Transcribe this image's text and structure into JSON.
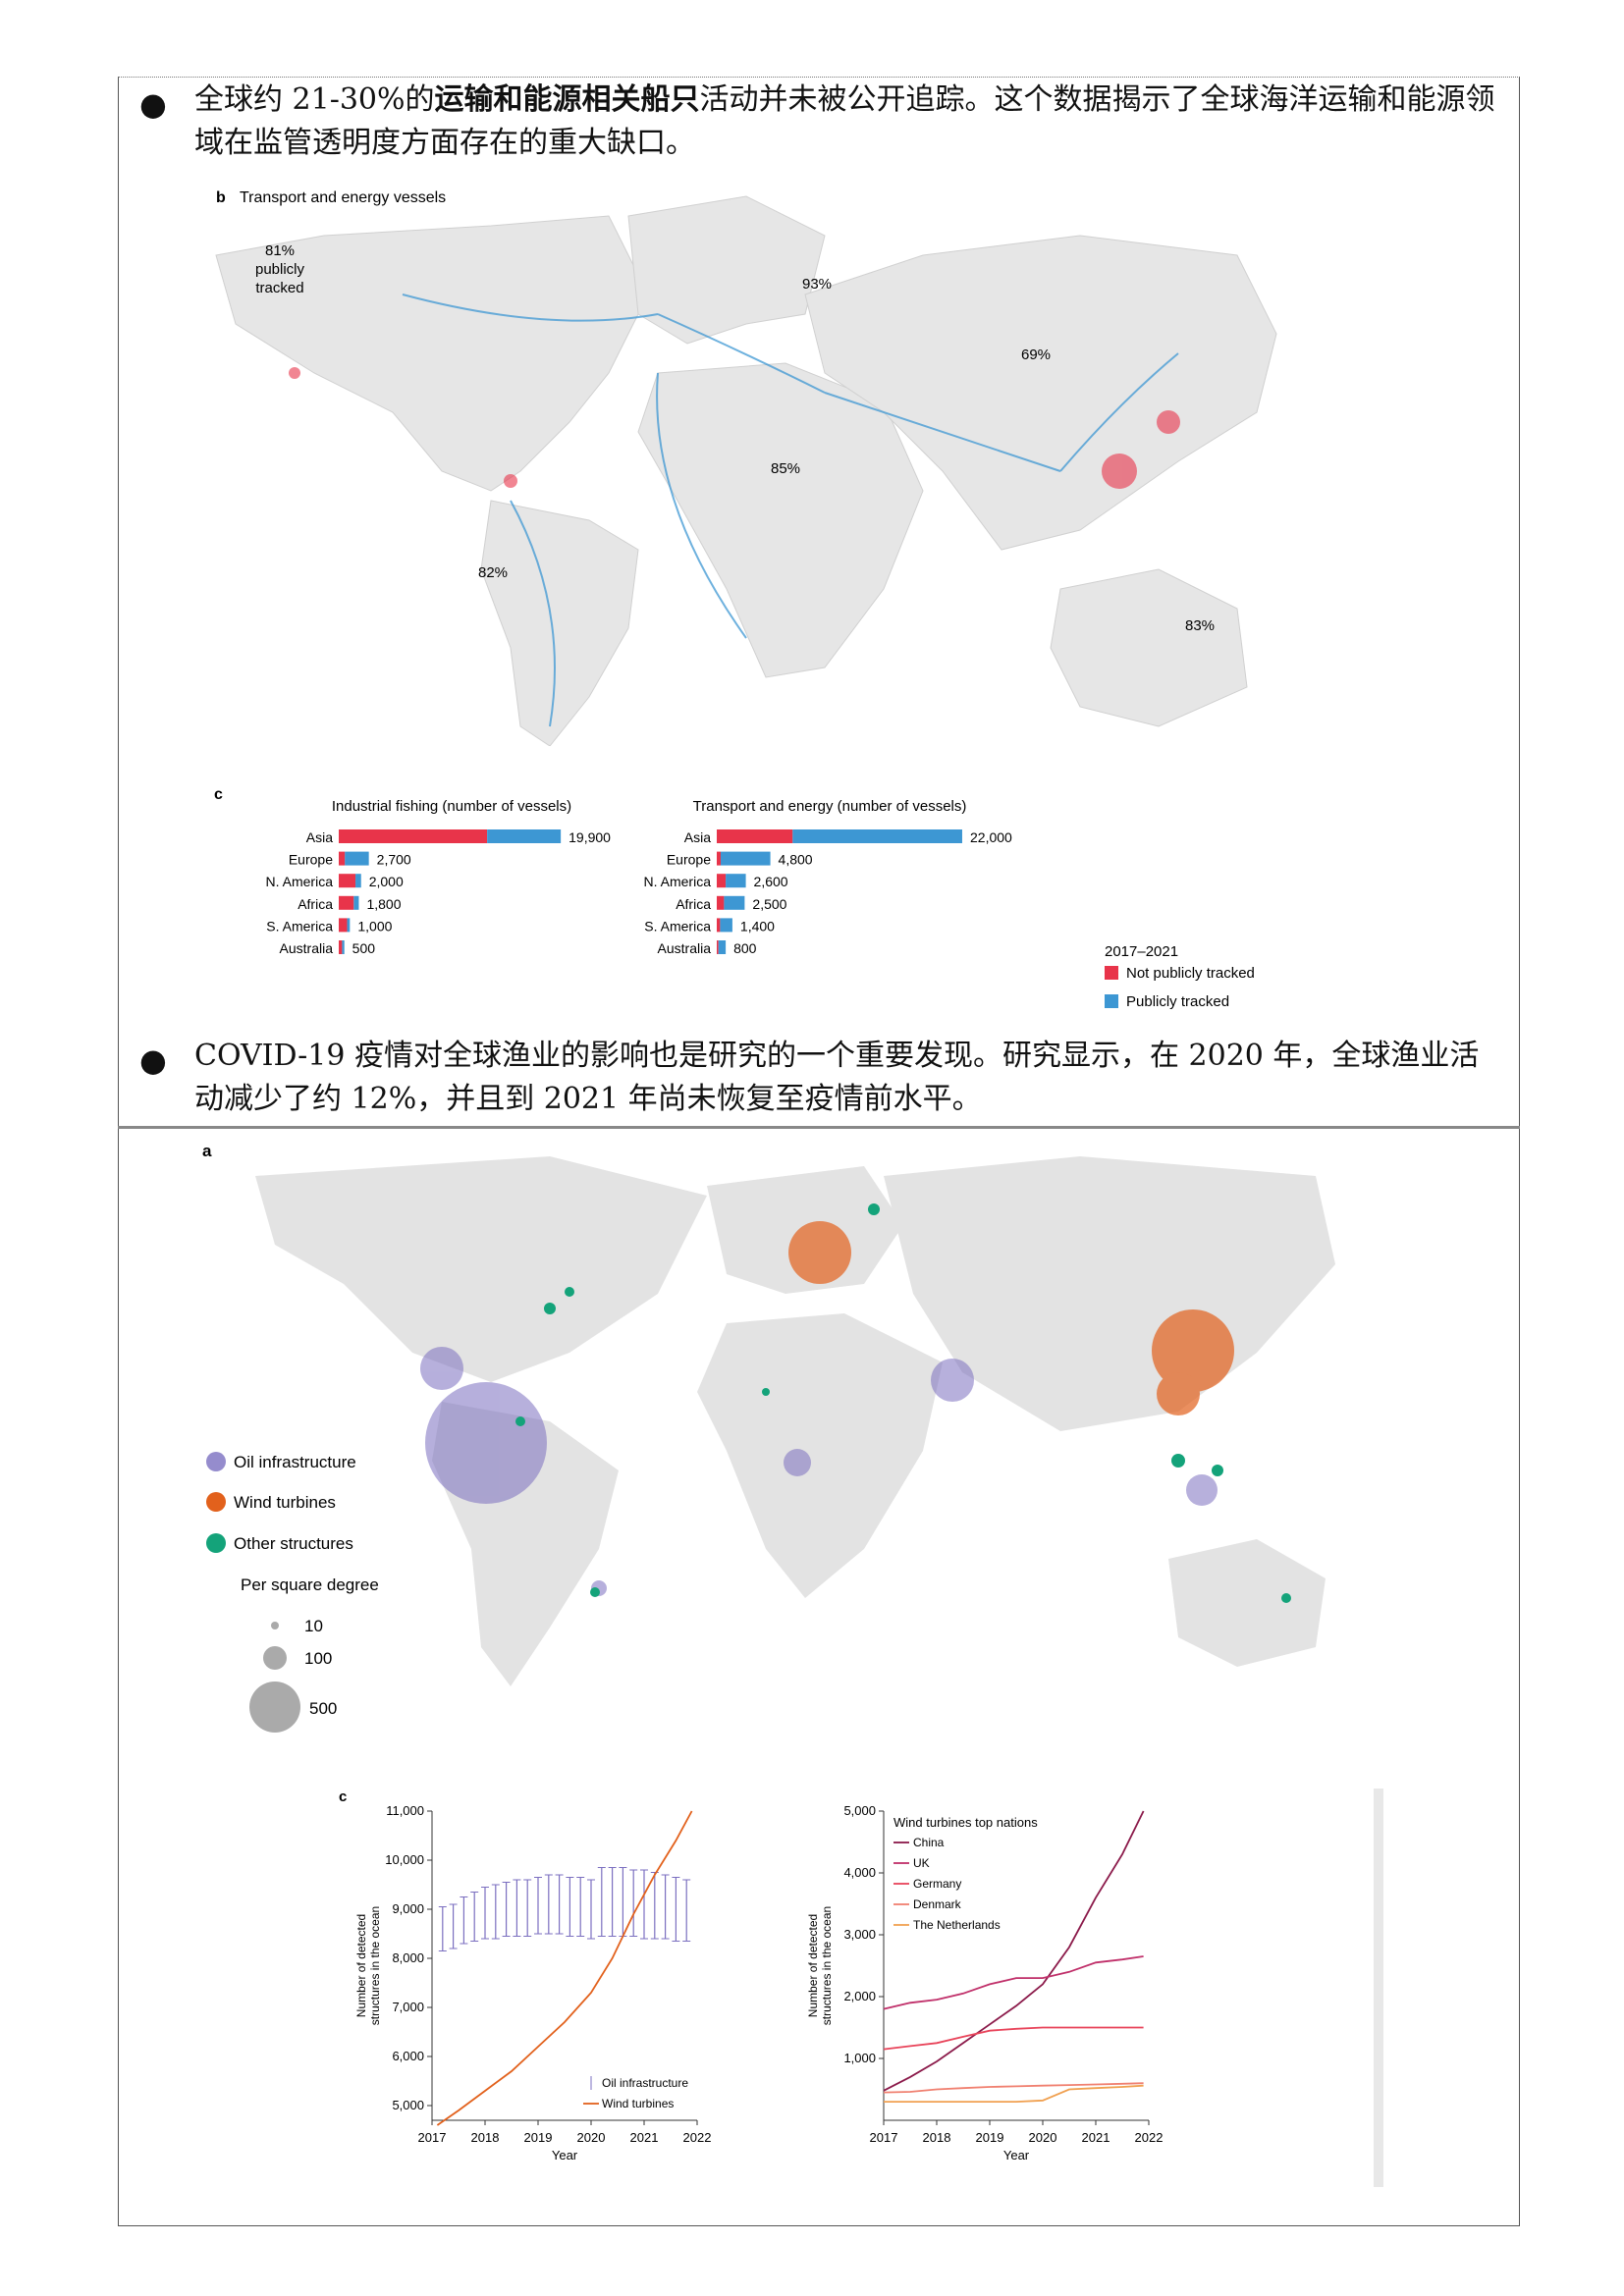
{
  "para1": {
    "pre": "全球约 21-30%的",
    "bold": "运输和能源相关船只",
    "post": "活动并未被公开追踪。这个数据揭示了全球海洋运输和能源领域在监管透明度方面存在的重大缺口。"
  },
  "para2": {
    "text": "COVID-19 疫情对全球渔业的影响也是研究的一个重要发现。研究显示，在 2020 年，全球渔业活动减少了约 12%，并且到 2021 年尚未恢复至疫情前水平。"
  },
  "bullet_glyph": "●",
  "figure_b": {
    "label": "b",
    "title": "Transport and energy vessels",
    "pct_na": [
      "81%",
      "publicly",
      "tracked"
    ],
    "pct_eu": "93%",
    "pct_asia": "69%",
    "pct_africa": "85%",
    "pct_sa": "82%",
    "pct_au": "83%"
  },
  "figure_c_top": {
    "label": "c",
    "legend_title": "2017–2021",
    "legend_items": [
      "Not publicly tracked",
      "Publicly tracked"
    ],
    "colors": {
      "not_tracked": "#e8344a",
      "tracked": "#3d97d3"
    }
  },
  "figure_a": {
    "label": "a",
    "legend": [
      "Oil infrastructure",
      "Wind turbines",
      "Other structures"
    ],
    "size_title": "Per square degree",
    "sizes": [
      "10",
      "100",
      "500"
    ],
    "colors": {
      "oil": "#7b6fc0",
      "wind": "#e2611c",
      "other": "#14a37a"
    }
  },
  "figure_c_bottom": {
    "label": "c"
  },
  "chart_data": [
    {
      "type": "bar",
      "title": "Industrial fishing (number of vessels)",
      "categories": [
        "Asia",
        "Europe",
        "N. America",
        "Africa",
        "S. America",
        "Australia"
      ],
      "series": [
        {
          "name": "Not publicly tracked",
          "values": [
            13300,
            550,
            1500,
            1350,
            750,
            300
          ]
        },
        {
          "name": "Publicly tracked",
          "values": [
            6600,
            2150,
            500,
            450,
            250,
            200
          ]
        }
      ],
      "totals": [
        "19,900",
        "2,700",
        "2,000",
        "1,800",
        "1,000",
        "500"
      ],
      "max": 22000
    },
    {
      "type": "bar",
      "title": "Transport and energy (number of vessels)",
      "categories": [
        "Asia",
        "Europe",
        "N. America",
        "Africa",
        "S. America",
        "Australia"
      ],
      "series": [
        {
          "name": "Not publicly tracked",
          "values": [
            6800,
            350,
            800,
            650,
            300,
            150
          ]
        },
        {
          "name": "Publicly tracked",
          "values": [
            15200,
            4450,
            1800,
            1850,
            1100,
            650
          ]
        }
      ],
      "totals": [
        "22,000",
        "4,800",
        "2,600",
        "2,500",
        "1,400",
        "800"
      ],
      "max": 22000
    },
    {
      "type": "line",
      "xlabel": "Year",
      "ylabel": "Number of detected structures in the ocean",
      "xlim": [
        2017,
        2022
      ],
      "ylim": [
        4700,
        11000
      ],
      "xticks": [
        "2017",
        "2018",
        "2019",
        "2020",
        "2021",
        "2022"
      ],
      "yticks": [
        "5,000",
        "6,000",
        "7,000",
        "8,000",
        "9,000",
        "10,000",
        "11,000"
      ],
      "legend": [
        "Oil infrastructure",
        "Wind turbines"
      ],
      "oil_errorbars": {
        "x": [
          2017.2,
          2017.4,
          2017.6,
          2017.8,
          2018.0,
          2018.2,
          2018.4,
          2018.6,
          2018.8,
          2019.0,
          2019.2,
          2019.4,
          2019.6,
          2019.8,
          2020.0,
          2020.2,
          2020.4,
          2020.6,
          2020.8,
          2021.0,
          2021.2,
          2021.4,
          2021.6,
          2021.8
        ],
        "low": [
          8150,
          8200,
          8300,
          8350,
          8400,
          8400,
          8450,
          8450,
          8450,
          8500,
          8500,
          8500,
          8450,
          8450,
          8400,
          8450,
          8450,
          8450,
          8450,
          8400,
          8400,
          8400,
          8350,
          8350
        ],
        "high": [
          9050,
          9100,
          9250,
          9350,
          9450,
          9500,
          9550,
          9600,
          9600,
          9650,
          9700,
          9700,
          9650,
          9650,
          9600,
          9850,
          9850,
          9850,
          9800,
          9800,
          9750,
          9700,
          9650,
          9600
        ]
      },
      "wind": {
        "x": [
          2017.1,
          2017.5,
          2018.0,
          2018.5,
          2019.0,
          2019.5,
          2020.0,
          2020.4,
          2020.8,
          2021.2,
          2021.6,
          2021.9
        ],
        "y": [
          4600,
          4900,
          5300,
          5700,
          6200,
          6700,
          7300,
          8000,
          8900,
          9700,
          10400,
          11000
        ]
      }
    },
    {
      "type": "line",
      "title": "Wind turbines top nations",
      "xlabel": "Year",
      "ylabel": "Number of detected structures in the ocean",
      "xlim": [
        2017,
        2022
      ],
      "ylim": [
        0,
        5000
      ],
      "xticks": [
        "2017",
        "2018",
        "2019",
        "2020",
        "2021",
        "2022"
      ],
      "yticks": [
        "1,000",
        "2,000",
        "3,000",
        "4,000",
        "5,000"
      ],
      "series": [
        {
          "name": "China",
          "color": "#8b1a4a",
          "x": [
            2017,
            2017.5,
            2018,
            2018.5,
            2019,
            2019.5,
            2020,
            2020.5,
            2021,
            2021.5,
            2021.9
          ],
          "y": [
            480,
            700,
            950,
            1250,
            1550,
            1850,
            2200,
            2800,
            3600,
            4300,
            5000
          ]
        },
        {
          "name": "UK",
          "color": "#c0306a",
          "x": [
            2017,
            2017.5,
            2018,
            2018.5,
            2019,
            2019.5,
            2020,
            2020.5,
            2021,
            2021.5,
            2021.9
          ],
          "y": [
            1800,
            1900,
            1950,
            2050,
            2200,
            2300,
            2300,
            2400,
            2550,
            2600,
            2650
          ]
        },
        {
          "name": "Germany",
          "color": "#e8445a",
          "x": [
            2017,
            2017.5,
            2018,
            2018.5,
            2019,
            2019.5,
            2020,
            2020.5,
            2021,
            2021.5,
            2021.9
          ],
          "y": [
            1150,
            1200,
            1250,
            1350,
            1450,
            1480,
            1500,
            1500,
            1500,
            1500,
            1500
          ]
        },
        {
          "name": "Denmark",
          "color": "#f08070",
          "x": [
            2017,
            2017.5,
            2018,
            2018.5,
            2019,
            2019.5,
            2020,
            2020.5,
            2021,
            2021.5,
            2021.9
          ],
          "y": [
            450,
            460,
            500,
            520,
            540,
            550,
            560,
            570,
            580,
            590,
            600
          ]
        },
        {
          "name": "The Netherlands",
          "color": "#f0a050",
          "x": [
            2017,
            2017.5,
            2018,
            2018.5,
            2019,
            2019.5,
            2020,
            2020.5,
            2021,
            2021.5,
            2021.9
          ],
          "y": [
            300,
            300,
            300,
            300,
            300,
            300,
            320,
            500,
            520,
            540,
            560
          ]
        }
      ]
    }
  ]
}
